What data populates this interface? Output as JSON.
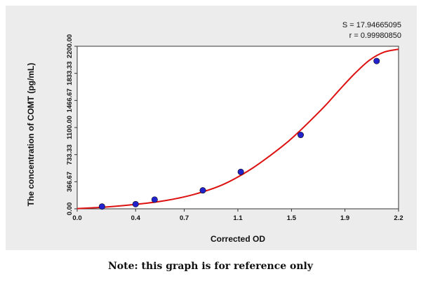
{
  "chart_data": {
    "type": "scatter",
    "xlabel": "Corrected OD",
    "ylabel": "The concentration of COMT (pg/mL)",
    "xlim": [
      0.0,
      2.2
    ],
    "ylim": [
      0.0,
      2200.0
    ],
    "x_ticks": [
      "0.0",
      "0.4",
      "0.7",
      "1.1",
      "1.5",
      "1.9",
      "2.2"
    ],
    "x_tick_values": [
      0.0,
      0.4,
      0.733,
      1.1,
      1.467,
      1.833,
      2.2
    ],
    "y_ticks": [
      "0.00",
      "366.67",
      "733.33",
      "1100.00",
      "1466.67",
      "1833.33",
      "2200.00"
    ],
    "y_tick_values": [
      0,
      366.67,
      733.33,
      1100,
      1466.67,
      1833.33,
      2200
    ],
    "points": [
      {
        "x": 0.17,
        "y": 31
      },
      {
        "x": 0.4,
        "y": 63
      },
      {
        "x": 0.53,
        "y": 125
      },
      {
        "x": 0.86,
        "y": 250
      },
      {
        "x": 1.12,
        "y": 500
      },
      {
        "x": 1.53,
        "y": 1000
      },
      {
        "x": 2.05,
        "y": 2000
      }
    ],
    "fit_curve": {
      "x": [
        0.0,
        0.2,
        0.4,
        0.6,
        0.8,
        1.0,
        1.2,
        1.4,
        1.5,
        1.6,
        1.7,
        1.8,
        1.9,
        2.0,
        2.1,
        2.2
      ],
      "y": [
        3,
        25,
        60,
        110,
        195,
        330,
        550,
        840,
        1010,
        1200,
        1400,
        1620,
        1830,
        2010,
        2120,
        2160
      ]
    },
    "grid": false,
    "colors": {
      "curve": "#dd1111",
      "point": "#2222cc",
      "panel": "#ececec"
    }
  },
  "stats": {
    "s": "S = 17.94665095",
    "r": "r = 0.99980850"
  },
  "note": "Note: this graph is for reference only"
}
